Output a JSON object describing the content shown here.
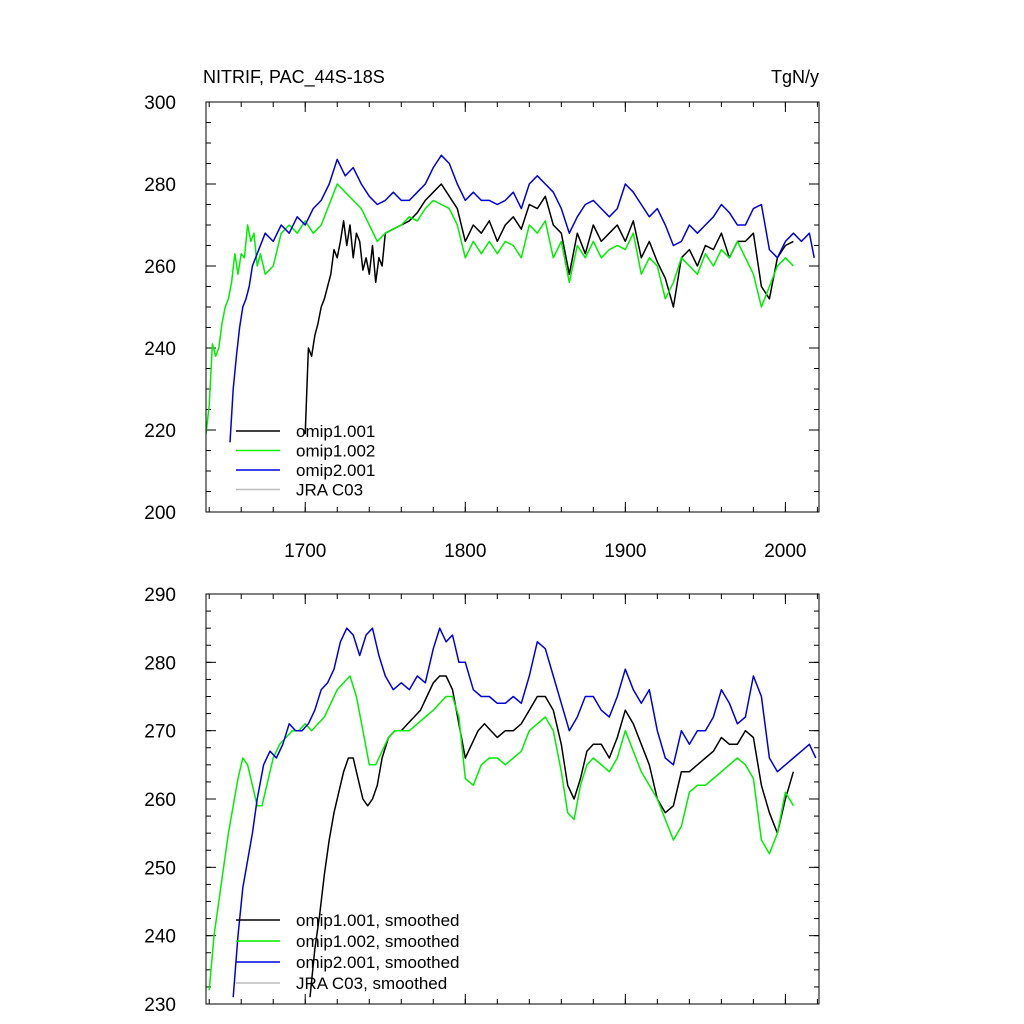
{
  "colors": {
    "omip1_001": "#000000",
    "omip1_002": "#00ee00",
    "omip2_001": "#0000dd",
    "jra_c03": "#bbbbbb"
  },
  "chart_data": [
    {
      "type": "line",
      "title": "NITRIF, PAC_44S-18S",
      "units": "TgN/y",
      "xlim": [
        1638,
        2021
      ],
      "ylim": [
        200,
        300
      ],
      "xticks": [
        1700,
        1800,
        1900,
        2000
      ],
      "xtick_labels": [
        "1700",
        "1800",
        "1900",
        "2000"
      ],
      "yticks": [
        200,
        220,
        240,
        260,
        280,
        300
      ],
      "ytick_labels": [
        "200",
        "220",
        "240",
        "260",
        "280",
        "300"
      ],
      "legend_position": "bottom-left",
      "series": [
        {
          "name": "omip1.001",
          "key": "omip1_001",
          "x": [
            1700,
            1702,
            1704,
            1706,
            1708,
            1710,
            1712,
            1714,
            1716,
            1718,
            1720,
            1722,
            1724,
            1726,
            1728,
            1730,
            1732,
            1734,
            1736,
            1738,
            1740,
            1742,
            1744,
            1746,
            1748,
            1750,
            1755,
            1760,
            1765,
            1770,
            1775,
            1780,
            1785,
            1790,
            1795,
            1800,
            1805,
            1810,
            1815,
            1820,
            1825,
            1830,
            1835,
            1840,
            1845,
            1850,
            1855,
            1860,
            1865,
            1870,
            1875,
            1880,
            1885,
            1890,
            1895,
            1900,
            1905,
            1910,
            1915,
            1920,
            1925,
            1930,
            1935,
            1940,
            1945,
            1950,
            1955,
            1960,
            1965,
            1970,
            1975,
            1980,
            1985,
            1990,
            1995,
            2000,
            2005
          ],
          "y": [
            219,
            240,
            238,
            243,
            246,
            250,
            252,
            255,
            258,
            264,
            262,
            266,
            271,
            265,
            270,
            262,
            268,
            266,
            259,
            262,
            258,
            265,
            256,
            262,
            260,
            268,
            269,
            270,
            271,
            273,
            276,
            278,
            280,
            277,
            274,
            266,
            270,
            268,
            271,
            266,
            270,
            272,
            269,
            275,
            274,
            277,
            270,
            268,
            258,
            268,
            263,
            270,
            266,
            268,
            270,
            266,
            271,
            262,
            266,
            261,
            257,
            250,
            262,
            264,
            260,
            265,
            264,
            268,
            262,
            266,
            266,
            268,
            255,
            252,
            262,
            265,
            266
          ]
        },
        {
          "name": "omip1.002",
          "key": "omip1_002",
          "x": [
            1638,
            1640,
            1642,
            1644,
            1646,
            1648,
            1650,
            1652,
            1654,
            1656,
            1658,
            1660,
            1662,
            1664,
            1666,
            1668,
            1670,
            1672,
            1675,
            1680,
            1685,
            1690,
            1695,
            1700,
            1705,
            1710,
            1715,
            1720,
            1725,
            1730,
            1735,
            1740,
            1745,
            1750,
            1755,
            1760,
            1765,
            1770,
            1775,
            1780,
            1785,
            1790,
            1795,
            1800,
            1805,
            1810,
            1815,
            1820,
            1825,
            1830,
            1835,
            1840,
            1845,
            1850,
            1855,
            1860,
            1865,
            1870,
            1875,
            1880,
            1885,
            1890,
            1895,
            1900,
            1905,
            1910,
            1915,
            1920,
            1925,
            1930,
            1935,
            1940,
            1945,
            1950,
            1955,
            1960,
            1965,
            1970,
            1975,
            1980,
            1985,
            1990,
            1995,
            2000,
            2005
          ],
          "y": [
            219,
            226,
            241,
            238,
            240,
            246,
            250,
            252,
            256,
            263,
            258,
            263,
            262,
            270,
            266,
            268,
            260,
            263,
            258,
            260,
            268,
            270,
            268,
            271,
            268,
            270,
            275,
            280,
            278,
            276,
            274,
            270,
            266,
            268,
            269,
            270,
            272,
            271,
            274,
            276,
            275,
            274,
            270,
            262,
            266,
            263,
            266,
            263,
            266,
            265,
            262,
            270,
            268,
            271,
            262,
            266,
            256,
            265,
            262,
            266,
            262,
            264,
            265,
            264,
            268,
            258,
            262,
            260,
            252,
            256,
            262,
            260,
            258,
            263,
            260,
            264,
            262,
            266,
            262,
            258,
            250,
            255,
            260,
            262,
            260
          ]
        },
        {
          "name": "omip2.001",
          "key": "omip2_001",
          "x": [
            1653,
            1655,
            1657,
            1659,
            1661,
            1663,
            1665,
            1667,
            1670,
            1675,
            1680,
            1685,
            1690,
            1695,
            1700,
            1705,
            1710,
            1715,
            1720,
            1725,
            1730,
            1735,
            1740,
            1745,
            1750,
            1755,
            1760,
            1765,
            1770,
            1775,
            1780,
            1785,
            1790,
            1795,
            1800,
            1805,
            1810,
            1815,
            1820,
            1825,
            1830,
            1835,
            1840,
            1845,
            1850,
            1855,
            1860,
            1865,
            1870,
            1875,
            1880,
            1885,
            1890,
            1895,
            1900,
            1905,
            1910,
            1915,
            1920,
            1925,
            1930,
            1935,
            1940,
            1945,
            1950,
            1955,
            1960,
            1965,
            1970,
            1975,
            1980,
            1985,
            1990,
            1995,
            2000,
            2005,
            2010,
            2015,
            2018
          ],
          "y": [
            217,
            230,
            238,
            245,
            250,
            252,
            255,
            260,
            263,
            268,
            266,
            270,
            268,
            272,
            270,
            274,
            276,
            280,
            286,
            282,
            284,
            280,
            277,
            275,
            276,
            278,
            276,
            276,
            278,
            280,
            284,
            287,
            285,
            280,
            276,
            278,
            276,
            276,
            275,
            276,
            278,
            274,
            280,
            282,
            280,
            278,
            274,
            268,
            272,
            275,
            276,
            274,
            272,
            274,
            280,
            278,
            275,
            272,
            274,
            270,
            265,
            266,
            270,
            268,
            270,
            272,
            275,
            273,
            270,
            270,
            274,
            275,
            264,
            262,
            266,
            268,
            266,
            268,
            262
          ]
        },
        {
          "name": "JRA C03",
          "key": "jra_c03",
          "x": [],
          "y": []
        }
      ]
    },
    {
      "type": "line",
      "title": "",
      "units": "",
      "xlim": [
        1638,
        2021
      ],
      "ylim": [
        230,
        290
      ],
      "xticks": [
        1700,
        1800,
        1900,
        2000
      ],
      "xtick_labels": [
        "",
        "",
        "",
        ""
      ],
      "yticks": [
        230,
        240,
        250,
        260,
        270,
        280,
        290
      ],
      "ytick_labels": [
        "230",
        "240",
        "250",
        "260",
        "270",
        "280",
        "290"
      ],
      "legend_position": "bottom-left",
      "series": [
        {
          "name": "omip1.001, smoothed",
          "key": "omip1_001",
          "x": [
            1703,
            1706,
            1709,
            1712,
            1715,
            1718,
            1721,
            1724,
            1727,
            1730,
            1733,
            1736,
            1739,
            1742,
            1745,
            1748,
            1752,
            1756,
            1760,
            1764,
            1768,
            1772,
            1776,
            1780,
            1784,
            1788,
            1792,
            1796,
            1800,
            1804,
            1808,
            1812,
            1816,
            1820,
            1825,
            1830,
            1835,
            1840,
            1845,
            1850,
            1855,
            1860,
            1864,
            1868,
            1872,
            1876,
            1880,
            1885,
            1890,
            1895,
            1900,
            1905,
            1910,
            1915,
            1920,
            1925,
            1930,
            1935,
            1940,
            1945,
            1950,
            1955,
            1960,
            1965,
            1970,
            1975,
            1980,
            1985,
            1990,
            1995,
            2000,
            2005
          ],
          "y": [
            231,
            238,
            243,
            249,
            254,
            258,
            261,
            264,
            266,
            266,
            263,
            260,
            259,
            260,
            262,
            266,
            269,
            270,
            270,
            271,
            272,
            273,
            275,
            277,
            278,
            278,
            276,
            271,
            266,
            268,
            270,
            271,
            270,
            269,
            270,
            270,
            271,
            273,
            275,
            275,
            273,
            268,
            262,
            260,
            263,
            267,
            268,
            268,
            266,
            269,
            273,
            271,
            268,
            265,
            260,
            258,
            259,
            264,
            264,
            265,
            266,
            267,
            269,
            268,
            268,
            270,
            269,
            262,
            258,
            255,
            260,
            264
          ]
        },
        {
          "name": "omip1.002, smoothed",
          "key": "omip1_002",
          "x": [
            1640,
            1643,
            1646,
            1649,
            1652,
            1655,
            1658,
            1661,
            1664,
            1667,
            1670,
            1673,
            1676,
            1680,
            1684,
            1688,
            1692,
            1696,
            1700,
            1704,
            1708,
            1712,
            1716,
            1720,
            1724,
            1728,
            1732,
            1736,
            1740,
            1744,
            1748,
            1752,
            1756,
            1760,
            1765,
            1770,
            1775,
            1780,
            1784,
            1788,
            1792,
            1796,
            1800,
            1805,
            1810,
            1815,
            1820,
            1825,
            1830,
            1835,
            1840,
            1845,
            1850,
            1855,
            1860,
            1864,
            1868,
            1872,
            1876,
            1880,
            1885,
            1890,
            1895,
            1900,
            1905,
            1910,
            1915,
            1920,
            1925,
            1930,
            1935,
            1940,
            1945,
            1950,
            1955,
            1960,
            1965,
            1970,
            1975,
            1980,
            1985,
            1990,
            1995,
            2000,
            2005
          ],
          "y": [
            232,
            240,
            245,
            250,
            255,
            259,
            263,
            266,
            265,
            262,
            259,
            259,
            262,
            266,
            268,
            269,
            270,
            270,
            271,
            270,
            271,
            272,
            274,
            276,
            277,
            278,
            275,
            270,
            265,
            265,
            267,
            269,
            270,
            270,
            270,
            271,
            272,
            273,
            274,
            275,
            275,
            272,
            263,
            262,
            265,
            266,
            266,
            265,
            266,
            267,
            270,
            271,
            272,
            270,
            264,
            258,
            257,
            262,
            265,
            266,
            265,
            264,
            266,
            270,
            267,
            264,
            262,
            260,
            257,
            254,
            256,
            261,
            262,
            262,
            263,
            264,
            265,
            266,
            265,
            263,
            254,
            252,
            255,
            261,
            259
          ]
        },
        {
          "name": "omip2.001, smoothed",
          "key": "omip2_001",
          "x": [
            1655,
            1658,
            1661,
            1664,
            1667,
            1670,
            1674,
            1678,
            1682,
            1686,
            1690,
            1694,
            1698,
            1702,
            1706,
            1710,
            1714,
            1718,
            1722,
            1726,
            1730,
            1734,
            1738,
            1742,
            1746,
            1750,
            1755,
            1760,
            1765,
            1770,
            1775,
            1780,
            1784,
            1788,
            1792,
            1796,
            1800,
            1805,
            1810,
            1815,
            1820,
            1825,
            1830,
            1835,
            1840,
            1845,
            1850,
            1855,
            1860,
            1865,
            1870,
            1875,
            1880,
            1885,
            1890,
            1895,
            1900,
            1905,
            1910,
            1915,
            1920,
            1925,
            1930,
            1935,
            1940,
            1945,
            1950,
            1955,
            1960,
            1965,
            1970,
            1975,
            1980,
            1985,
            1990,
            1995,
            2000,
            2005,
            2010,
            2015,
            2019
          ],
          "y": [
            231,
            240,
            247,
            251,
            255,
            260,
            265,
            267,
            266,
            268,
            271,
            270,
            270,
            271,
            273,
            276,
            277,
            279,
            283,
            285,
            284,
            281,
            284,
            285,
            281,
            278,
            276,
            277,
            276,
            278,
            277,
            282,
            285,
            283,
            284,
            280,
            280,
            276,
            275,
            275,
            274,
            274,
            275,
            274,
            278,
            283,
            282,
            278,
            274,
            270,
            272,
            275,
            275,
            273,
            272,
            275,
            279,
            276,
            274,
            276,
            270,
            266,
            265,
            270,
            268,
            270,
            270,
            272,
            276,
            274,
            271,
            272,
            278,
            275,
            266,
            264,
            265,
            266,
            267,
            268,
            266
          ]
        },
        {
          "name": "JRA C03, smoothed",
          "key": "jra_c03",
          "x": [],
          "y": []
        }
      ]
    }
  ]
}
